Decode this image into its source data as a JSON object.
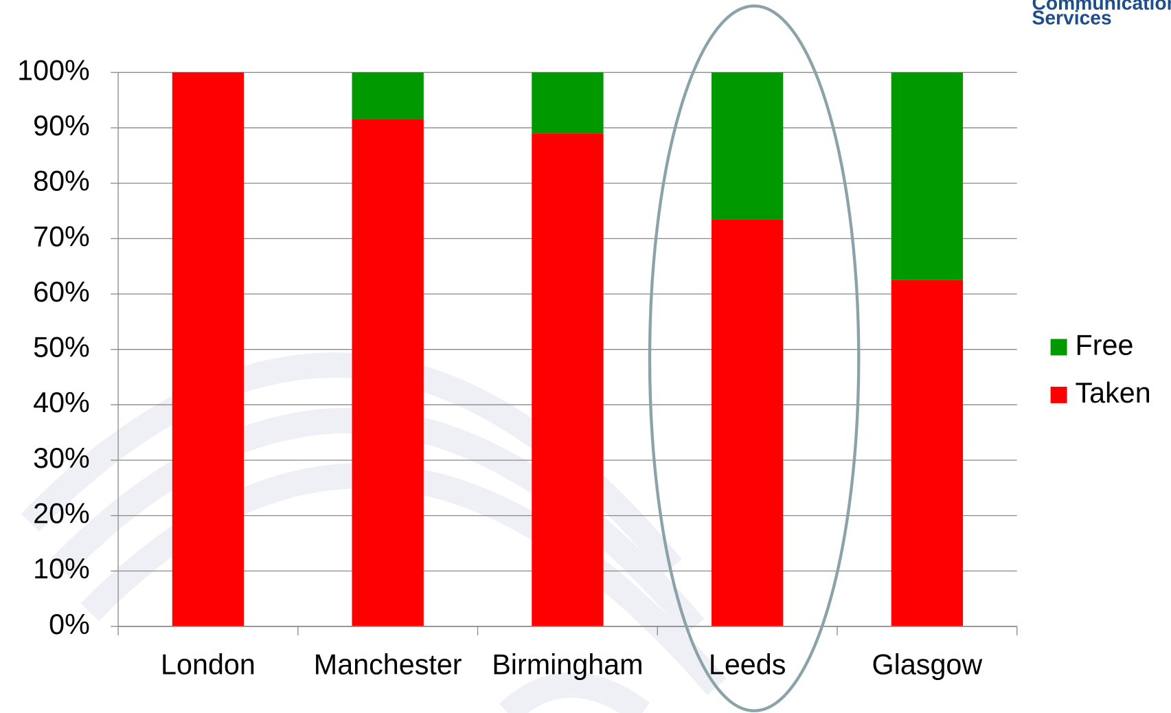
{
  "logo": {
    "line1": "Communications",
    "line2": "Services"
  },
  "chart_data": {
    "type": "stacked_bar",
    "categories": [
      "London",
      "Manchester",
      "Birmingham",
      "Leeds",
      "Glasgow"
    ],
    "series": [
      {
        "name": "Taken",
        "color": "#ff0000",
        "values": [
          100,
          91.5,
          89,
          73.5,
          62.5
        ]
      },
      {
        "name": "Free",
        "color": "#009900",
        "values": [
          0,
          8.5,
          11,
          26.5,
          37.5
        ]
      }
    ],
    "ylim": [
      0,
      100
    ],
    "yticks": [
      {
        "value": 0,
        "label": "0%"
      },
      {
        "value": 10,
        "label": "10%"
      },
      {
        "value": 20,
        "label": "20%"
      },
      {
        "value": 30,
        "label": "30%"
      },
      {
        "value": 40,
        "label": "40%"
      },
      {
        "value": 50,
        "label": "50%"
      },
      {
        "value": 60,
        "label": "60%"
      },
      {
        "value": 70,
        "label": "70%"
      },
      {
        "value": 80,
        "label": "80%"
      },
      {
        "value": 90,
        "label": "90%"
      },
      {
        "value": 100,
        "label": "100%"
      }
    ],
    "grid": true,
    "legend": "right"
  }
}
